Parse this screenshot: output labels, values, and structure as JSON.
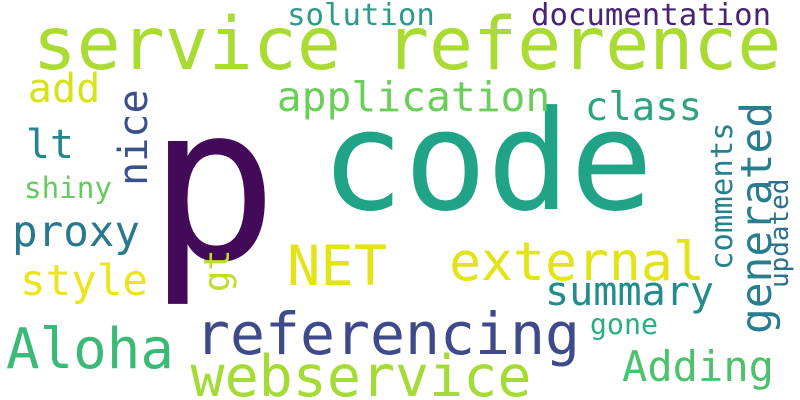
{
  "wordcloud": {
    "words": [
      {
        "text": "p",
        "color": "#440a5a"
      },
      {
        "text": "code",
        "color": "#20a386"
      },
      {
        "text": "service reference",
        "color": "#a9db33"
      },
      {
        "text": "referencing",
        "color": "#3f4a8a"
      },
      {
        "text": "NET",
        "color": "#e2e418"
      },
      {
        "text": "external",
        "color": "#e2e418"
      },
      {
        "text": "webservice",
        "color": "#a4db36"
      },
      {
        "text": "Aloha",
        "color": "#3aba76"
      },
      {
        "text": "application",
        "color": "#6ccd5a"
      },
      {
        "text": "proxy",
        "color": "#2a788e"
      },
      {
        "text": "summary",
        "color": "#228c8d"
      },
      {
        "text": "Adding",
        "color": "#4cc26c"
      },
      {
        "text": "generated",
        "color": "#287d8e"
      },
      {
        "text": "class",
        "color": "#2ea37f"
      },
      {
        "text": "nice",
        "color": "#3b518b"
      },
      {
        "text": "style",
        "color": "#ece51b"
      },
      {
        "text": "add",
        "color": "#d8e219"
      },
      {
        "text": "lt",
        "color": "#25848e"
      },
      {
        "text": "gt",
        "color": "#bddf26"
      },
      {
        "text": "documentation",
        "color": "#482475"
      },
      {
        "text": "solution",
        "color": "#2c9b8a"
      },
      {
        "text": "comments",
        "color": "#26818e"
      },
      {
        "text": "shiny",
        "color": "#65cb5e"
      },
      {
        "text": "gone",
        "color": "#2ab07f"
      },
      {
        "text": "updated",
        "color": "#2d708e"
      }
    ]
  }
}
